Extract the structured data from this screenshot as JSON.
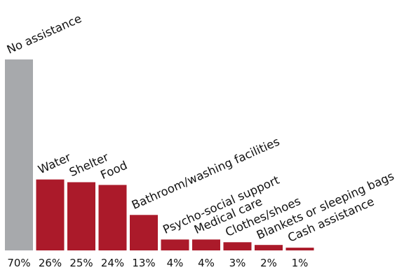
{
  "chart_data": {
    "type": "bar",
    "title": "",
    "xlabel": "",
    "ylabel": "",
    "ylim": [
      0,
      70
    ],
    "grid": false,
    "legend": "none",
    "categories": [
      "No assistance",
      "Water",
      "Shelter",
      "Food",
      "Bathroom/washing facilities",
      "Psycho-social support",
      "Medical care",
      "Clothes/shoes",
      "Blankets or sleeping bags",
      "Cash assistance"
    ],
    "values": [
      70,
      26,
      25,
      24,
      13,
      4,
      4,
      3,
      2,
      1
    ],
    "value_labels": [
      "70%",
      "26%",
      "25%",
      "24%",
      "13%",
      "4%",
      "4%",
      "3%",
      "2%",
      "1%"
    ],
    "colors": {
      "highlight": "#a7a9ac",
      "bars": "#ab1a2a"
    },
    "bar_colors": [
      "#a7a9ac",
      "#ab1a2a",
      "#ab1a2a",
      "#ab1a2a",
      "#ab1a2a",
      "#ab1a2a",
      "#ab1a2a",
      "#ab1a2a",
      "#ab1a2a",
      "#ab1a2a"
    ]
  }
}
